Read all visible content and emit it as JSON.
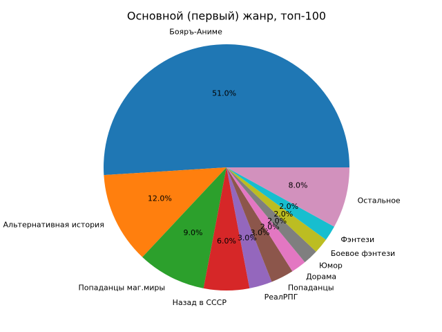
{
  "chart_data": {
    "type": "pie",
    "title": "Основной (первый) жанр, топ-100",
    "categories": [
      "Бояръ-Аниме",
      "Альтернативная история",
      "Попаданцы маг.миры",
      "Назад в СССР",
      "РеалРПГ",
      "Попаданцы",
      "Дорама",
      "Юмор",
      "Боевое фэнтези",
      "Фэнтези",
      "Остальное"
    ],
    "values": [
      51,
      12,
      9,
      6,
      3,
      3,
      2,
      2,
      2,
      2,
      8
    ],
    "value_labels": [
      "51.0%",
      "12.0%",
      "9.0%",
      "6.0%",
      "3.0%",
      "3.0%",
      "2.0%",
      "2.0%",
      "2.0%",
      "2.0%",
      "8.0%"
    ],
    "colors": [
      "#1f77b4",
      "#ff7f0e",
      "#2ca02c",
      "#d62728",
      "#9467bd",
      "#8c564b",
      "#e377c2",
      "#7f7f7f",
      "#bcbd22",
      "#17becf",
      "#d291bd"
    ]
  }
}
